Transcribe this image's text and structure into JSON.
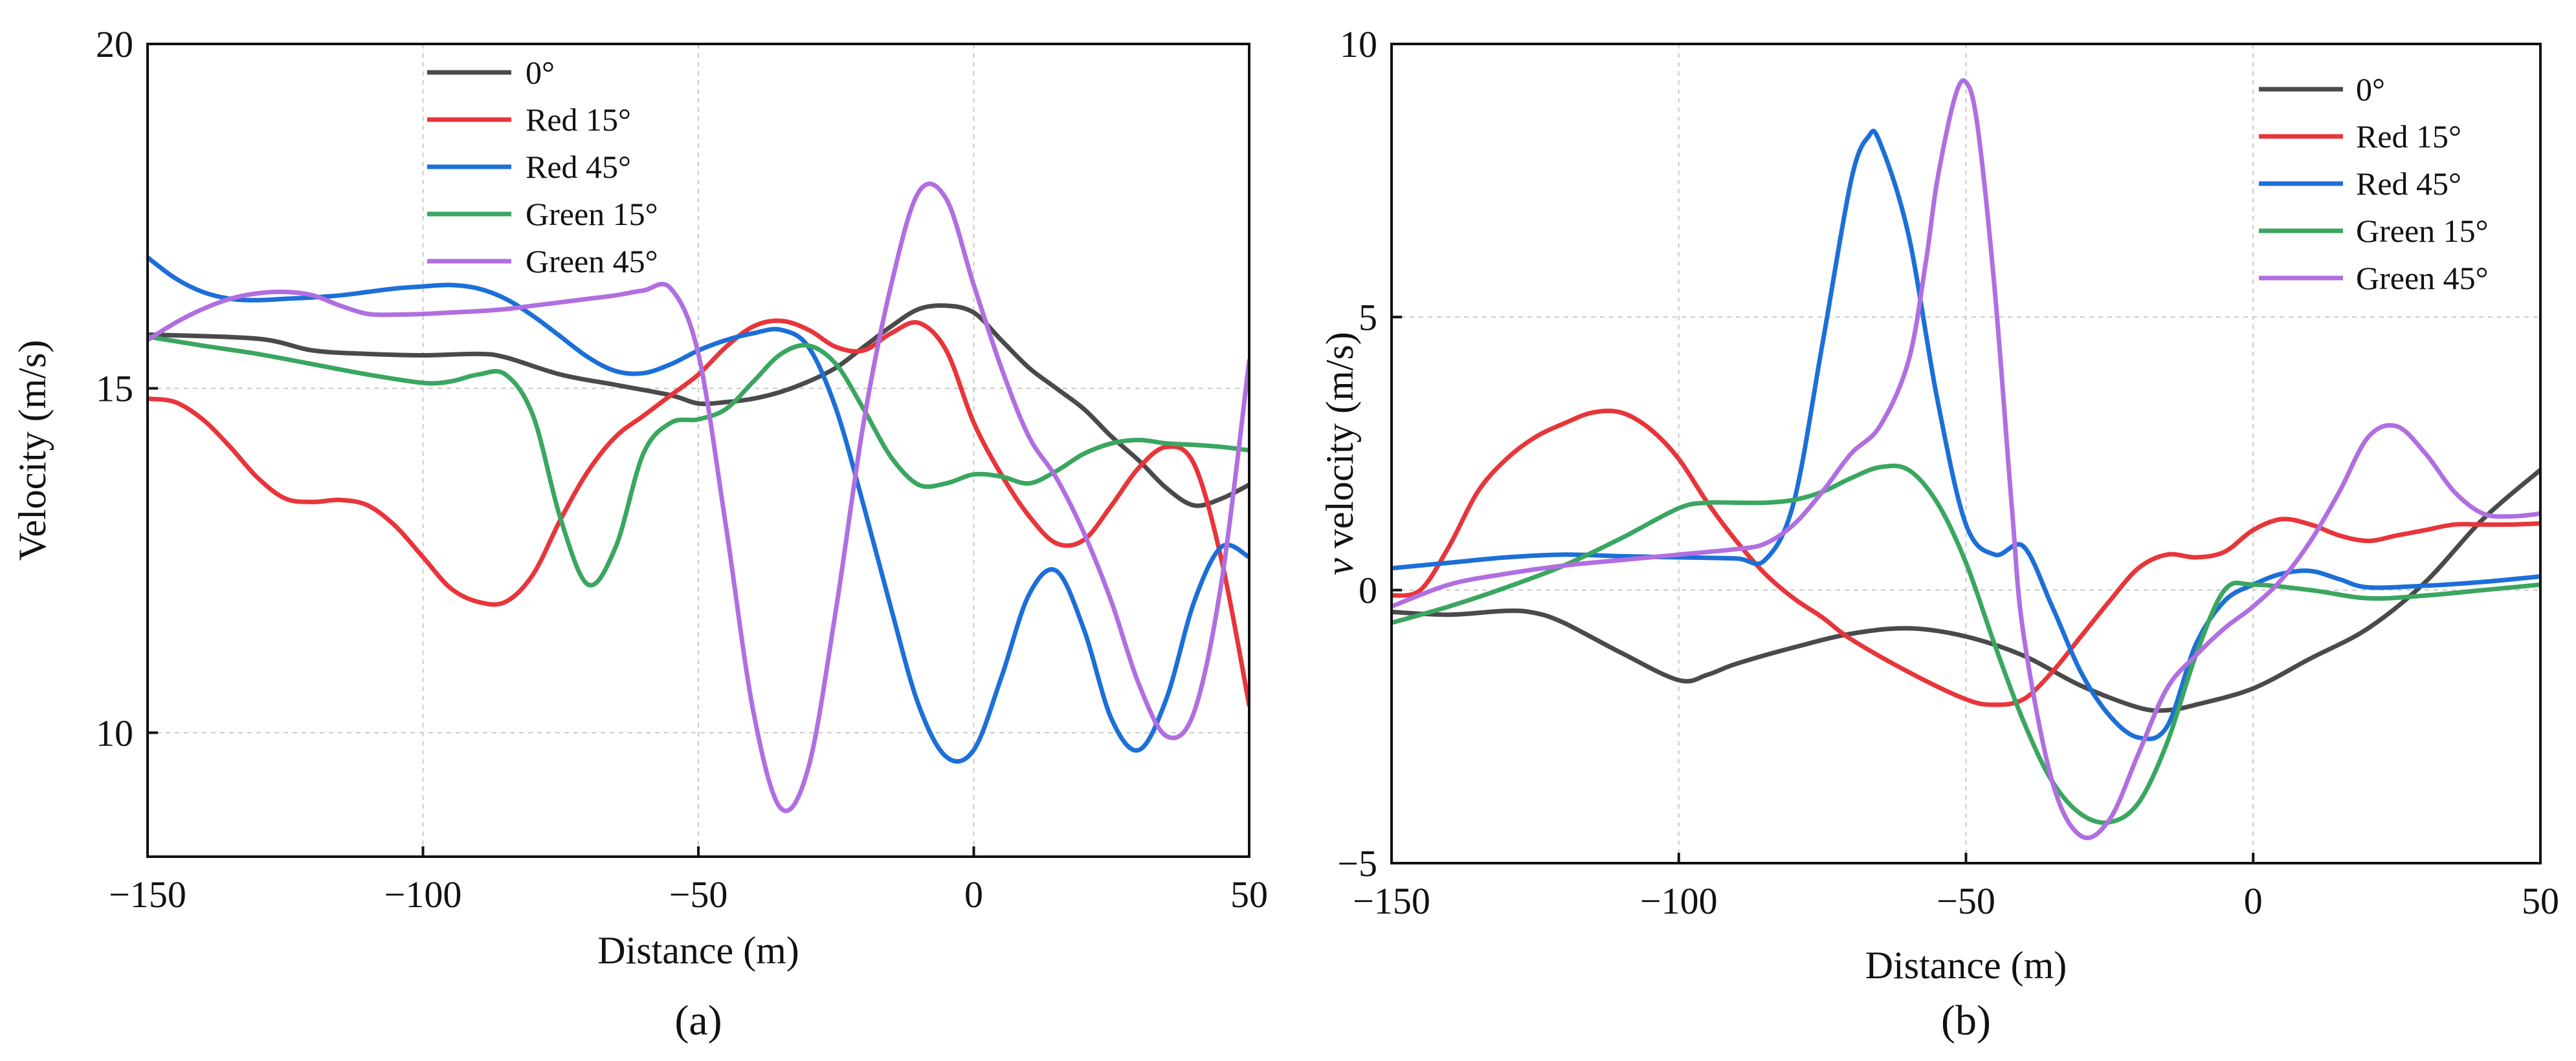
{
  "chart_data": [
    {
      "type": "line",
      "panel_label": "(a)",
      "title": "",
      "xlabel": "Distance (m)",
      "ylabel": "Velocity (m/s)",
      "xlim": [
        -150,
        50
      ],
      "ylim": [
        8.2,
        20
      ],
      "xticks": [
        -150,
        -100,
        -50,
        0,
        50
      ],
      "yticks": [
        10,
        15,
        20
      ],
      "xtick_labels": [
        "−150",
        "−100",
        "−50",
        "0",
        "50"
      ],
      "ytick_labels": [
        "10",
        "15",
        "20"
      ],
      "grid": true,
      "legend_position": "top-center",
      "series": [
        {
          "name": "0°",
          "color": "#4a4a4a",
          "x": [
            -150,
            -130,
            -120,
            -110,
            -100,
            -90,
            -85,
            -75,
            -65,
            -55,
            -50,
            -45,
            -40,
            -35,
            -30,
            -25,
            -20,
            -15,
            -10,
            -5,
            0,
            5,
            10,
            15,
            20,
            25,
            30,
            35,
            40,
            45,
            50
          ],
          "y": [
            15.78,
            15.72,
            15.55,
            15.5,
            15.48,
            15.5,
            15.45,
            15.2,
            15.05,
            14.9,
            14.78,
            14.8,
            14.85,
            14.95,
            15.1,
            15.3,
            15.6,
            15.9,
            16.15,
            16.2,
            16.1,
            15.7,
            15.3,
            15.0,
            14.7,
            14.3,
            13.95,
            13.55,
            13.3,
            13.4,
            13.6
          ]
        },
        {
          "name": "Red 15°",
          "color": "#e8353a",
          "x": [
            -150,
            -145,
            -140,
            -135,
            -130,
            -125,
            -120,
            -115,
            -110,
            -105,
            -100,
            -95,
            -90,
            -85,
            -80,
            -75,
            -70,
            -65,
            -60,
            -55,
            -50,
            -45,
            -40,
            -35,
            -30,
            -25,
            -20,
            -15,
            -10,
            -5,
            0,
            5,
            10,
            15,
            20,
            25,
            30,
            35,
            40,
            45,
            50
          ],
          "y": [
            14.85,
            14.8,
            14.55,
            14.15,
            13.7,
            13.4,
            13.35,
            13.38,
            13.3,
            13.0,
            12.55,
            12.1,
            11.9,
            11.9,
            12.3,
            13.1,
            13.8,
            14.3,
            14.6,
            14.9,
            15.2,
            15.6,
            15.9,
            15.98,
            15.85,
            15.6,
            15.55,
            15.8,
            15.95,
            15.55,
            14.5,
            13.75,
            13.15,
            12.75,
            12.8,
            13.3,
            13.85,
            14.15,
            13.9,
            12.5,
            10.4
          ]
        },
        {
          "name": "Red 45°",
          "color": "#1c6fd8",
          "x": [
            -150,
            -145,
            -140,
            -135,
            -130,
            -125,
            -120,
            -115,
            -110,
            -105,
            -100,
            -95,
            -90,
            -85,
            -80,
            -75,
            -70,
            -65,
            -60,
            -55,
            -50,
            -45,
            -40,
            -35,
            -30,
            -25,
            -20,
            -15,
            -10,
            -5,
            0,
            5,
            10,
            15,
            20,
            25,
            30,
            35,
            40,
            45,
            50
          ],
          "y": [
            16.9,
            16.6,
            16.4,
            16.3,
            16.28,
            16.3,
            16.32,
            16.35,
            16.4,
            16.45,
            16.48,
            16.5,
            16.45,
            16.3,
            16.05,
            15.75,
            15.45,
            15.25,
            15.22,
            15.35,
            15.55,
            15.7,
            15.8,
            15.85,
            15.6,
            14.7,
            13.3,
            11.8,
            10.4,
            9.65,
            9.75,
            10.8,
            12.0,
            12.35,
            11.5,
            10.2,
            9.75,
            10.5,
            11.9,
            12.7,
            12.55
          ]
        },
        {
          "name": "Green 15°",
          "color": "#3aa660",
          "x": [
            -150,
            -140,
            -130,
            -120,
            -110,
            -100,
            -95,
            -90,
            -85,
            -80,
            -75,
            -70,
            -65,
            -60,
            -55,
            -50,
            -45,
            -40,
            -35,
            -30,
            -25,
            -20,
            -15,
            -10,
            -5,
            0,
            5,
            10,
            15,
            20,
            25,
            30,
            35,
            40,
            45,
            50
          ],
          "y": [
            15.75,
            15.62,
            15.5,
            15.35,
            15.2,
            15.08,
            15.1,
            15.2,
            15.2,
            14.6,
            13.1,
            12.15,
            12.7,
            14.05,
            14.5,
            14.55,
            14.7,
            15.1,
            15.5,
            15.62,
            15.35,
            14.7,
            14.0,
            13.6,
            13.62,
            13.75,
            13.72,
            13.62,
            13.8,
            14.05,
            14.2,
            14.25,
            14.2,
            14.18,
            14.15,
            14.1
          ]
        },
        {
          "name": "Green 45°",
          "color": "#b06ee0",
          "x": [
            -150,
            -145,
            -140,
            -135,
            -130,
            -125,
            -120,
            -115,
            -110,
            -105,
            -100,
            -95,
            -90,
            -85,
            -80,
            -75,
            -70,
            -65,
            -60,
            -55,
            -50,
            -45,
            -40,
            -35,
            -30,
            -25,
            -20,
            -15,
            -10,
            -5,
            0,
            5,
            10,
            15,
            20,
            25,
            30,
            35,
            40,
            45,
            50
          ],
          "y": [
            15.7,
            15.95,
            16.15,
            16.3,
            16.38,
            16.4,
            16.35,
            16.2,
            16.08,
            16.07,
            16.08,
            16.1,
            16.12,
            16.15,
            16.2,
            16.25,
            16.3,
            16.35,
            16.42,
            16.45,
            15.5,
            13.0,
            10.3,
            8.9,
            9.5,
            11.8,
            14.5,
            16.5,
            17.85,
            17.75,
            16.5,
            15.3,
            14.3,
            13.7,
            12.9,
            11.9,
            10.7,
            9.95,
            10.3,
            12.2,
            15.4
          ]
        }
      ]
    },
    {
      "type": "line",
      "panel_label": "(b)",
      "title": "",
      "xlabel": "Distance (m)",
      "ylabel_italic": "v",
      "ylabel": " velocity (m/s)",
      "xlim": [
        -150,
        50
      ],
      "ylim": [
        -5,
        10
      ],
      "xticks": [
        -150,
        -100,
        -50,
        0,
        50
      ],
      "yticks": [
        -5,
        0,
        5,
        10
      ],
      "xtick_labels": [
        "−150",
        "−100",
        "−50",
        "0",
        "50"
      ],
      "ytick_labels": [
        "−5",
        "0",
        "5",
        "10"
      ],
      "grid": true,
      "legend_position": "top-right",
      "series": [
        {
          "name": "0°",
          "color": "#4a4a4a",
          "x": [
            -150,
            -140,
            -130,
            -125,
            -120,
            -110,
            -100,
            -95,
            -90,
            -80,
            -70,
            -60,
            -50,
            -40,
            -30,
            -20,
            -15,
            -10,
            0,
            10,
            20,
            30,
            40,
            50
          ],
          "y": [
            -0.4,
            -0.45,
            -0.38,
            -0.42,
            -0.6,
            -1.15,
            -1.65,
            -1.55,
            -1.35,
            -1.05,
            -0.8,
            -0.7,
            -0.85,
            -1.2,
            -1.75,
            -2.15,
            -2.2,
            -2.1,
            -1.8,
            -1.25,
            -0.7,
            0.15,
            1.3,
            2.2
          ]
        },
        {
          "name": "Red 15°",
          "color": "#e8353a",
          "x": [
            -150,
            -145,
            -140,
            -135,
            -130,
            -125,
            -120,
            -115,
            -110,
            -105,
            -100,
            -95,
            -90,
            -85,
            -80,
            -75,
            -70,
            -60,
            -50,
            -45,
            -40,
            -35,
            -30,
            -25,
            -20,
            -15,
            -10,
            -5,
            0,
            5,
            10,
            15,
            20,
            25,
            30,
            35,
            40,
            45,
            50
          ],
          "y": [
            -0.1,
            0.0,
            0.8,
            1.8,
            2.4,
            2.8,
            3.05,
            3.25,
            3.25,
            2.95,
            2.4,
            1.6,
            0.9,
            0.3,
            -0.15,
            -0.5,
            -0.9,
            -1.5,
            -2.0,
            -2.1,
            -2.0,
            -1.5,
            -0.85,
            -0.2,
            0.4,
            0.65,
            0.6,
            0.7,
            1.1,
            1.3,
            1.2,
            1.0,
            0.9,
            1.0,
            1.1,
            1.2,
            1.2,
            1.2,
            1.22
          ]
        },
        {
          "name": "Red 45°",
          "color": "#1c6fd8",
          "x": [
            -150,
            -140,
            -130,
            -120,
            -110,
            -100,
            -90,
            -85,
            -80,
            -75,
            -70,
            -67,
            -65,
            -60,
            -55,
            -50,
            -45,
            -40,
            -35,
            -30,
            -25,
            -20,
            -15,
            -10,
            -5,
            0,
            5,
            10,
            15,
            20,
            30,
            40,
            50
          ],
          "y": [
            0.4,
            0.5,
            0.6,
            0.65,
            0.62,
            0.6,
            0.58,
            0.55,
            1.6,
            4.5,
            7.5,
            8.3,
            8.2,
            6.5,
            3.5,
            1.2,
            0.65,
            0.8,
            -0.3,
            -1.5,
            -2.3,
            -2.7,
            -2.5,
            -1.0,
            -0.2,
            0.1,
            0.3,
            0.35,
            0.2,
            0.05,
            0.08,
            0.15,
            0.25
          ]
        },
        {
          "name": "Green 15°",
          "color": "#3aa660",
          "x": [
            -150,
            -140,
            -130,
            -120,
            -110,
            -100,
            -95,
            -90,
            -85,
            -80,
            -75,
            -70,
            -65,
            -60,
            -55,
            -50,
            -45,
            -40,
            -35,
            -30,
            -25,
            -20,
            -15,
            -10,
            -5,
            0,
            10,
            20,
            30,
            40,
            50
          ],
          "y": [
            -0.6,
            -0.3,
            0.05,
            0.45,
            0.95,
            1.5,
            1.6,
            1.6,
            1.6,
            1.65,
            1.8,
            2.05,
            2.25,
            2.2,
            1.6,
            0.5,
            -1.0,
            -2.4,
            -3.5,
            -4.1,
            -4.25,
            -3.9,
            -2.8,
            -1.2,
            0.0,
            0.1,
            0.0,
            -0.15,
            -0.1,
            0.0,
            0.1
          ]
        },
        {
          "name": "Green 45°",
          "color": "#b06ee0",
          "x": [
            -150,
            -140,
            -130,
            -120,
            -110,
            -100,
            -90,
            -85,
            -80,
            -75,
            -70,
            -65,
            -60,
            -57,
            -55,
            -52,
            -50,
            -48,
            -45,
            -42,
            -40,
            -35,
            -30,
            -25,
            -20,
            -15,
            -10,
            -5,
            0,
            5,
            10,
            15,
            20,
            25,
            30,
            35,
            40,
            45,
            50
          ],
          "y": [
            -0.3,
            0.1,
            0.3,
            0.45,
            0.55,
            0.65,
            0.75,
            0.85,
            1.2,
            1.8,
            2.5,
            3.0,
            4.2,
            6.0,
            7.5,
            9.0,
            9.3,
            8.5,
            5.5,
            1.5,
            -0.8,
            -3.5,
            -4.5,
            -4.2,
            -3.0,
            -1.8,
            -1.2,
            -0.7,
            -0.3,
            0.2,
            0.9,
            1.8,
            2.8,
            3.0,
            2.5,
            1.8,
            1.4,
            1.35,
            1.4
          ]
        }
      ]
    }
  ]
}
